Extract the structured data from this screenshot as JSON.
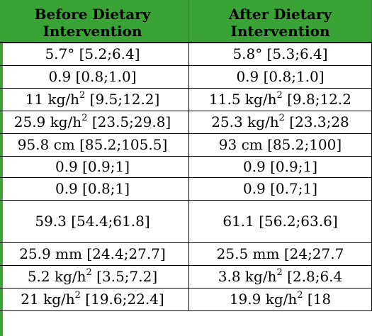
{
  "header": {
    "before": [
      "Before Dietary",
      "Intervention"
    ],
    "after": [
      "After Dietary",
      "Intervention"
    ]
  },
  "rows": [
    {
      "before": "5.7° [5.2;6.4]",
      "after": "5.8° [5.3;6.4]",
      "before_parts": null,
      "after_parts": null
    },
    {
      "before": "0.9 [0.8;1.0]",
      "after": "0.9 [0.8;1.0]",
      "before_parts": null,
      "after_parts": null
    },
    {
      "before": "",
      "after": "",
      "before_parts": {
        "pre": "11 kg/h",
        "sup": "2",
        "post": " [9.5;12.2]"
      },
      "after_parts": {
        "pre": "11.5 kg/h",
        "sup": "2",
        "post": " [9.8;12.2"
      }
    },
    {
      "before": "",
      "after": "",
      "before_parts": {
        "pre": "25.9 kg/h",
        "sup": "2",
        "post": " [23.5;29.8]"
      },
      "after_parts": {
        "pre": "25.3 kg/h",
        "sup": "2",
        "post": " [23.3;28"
      }
    },
    {
      "before": "95.8 cm [85.2;105.5]",
      "after": "93 cm [85.2;100]",
      "before_parts": null,
      "after_parts": null
    },
    {
      "before": "0.9 [0.9;1]",
      "after": "0.9 [0.9;1]",
      "before_parts": null,
      "after_parts": null
    },
    {
      "before": "0.9 [0.8;1]",
      "after": "0.9 [0.7;1]",
      "before_parts": null,
      "after_parts": null
    },
    {
      "before": "59.3 [54.4;61.8]",
      "after": "61.1 [56.2;63.6]",
      "before_parts": null,
      "after_parts": null
    },
    {
      "before": "25.9 mm [24.4;27.7]",
      "after": "25.5 mm [24;27.7",
      "before_parts": null,
      "after_parts": null
    },
    {
      "before": "",
      "after": "",
      "before_parts": {
        "pre": "5.2 kg/h",
        "sup": "2",
        "post": " [3.5;7.2]"
      },
      "after_parts": {
        "pre": "3.8 kg/h",
        "sup": "2",
        "post": " [2.8;6.4"
      }
    },
    {
      "before": "",
      "after": "",
      "before_parts": {
        "pre": "21 kg/h",
        "sup": "2",
        "post": " [19.6;22.4]"
      },
      "after_parts": {
        "pre": "19.9 kg/h",
        "sup": "2",
        "post": " [18"
      }
    }
  ],
  "colors": {
    "header_bg": "#3aa335",
    "accent_stripe": "#3aa335",
    "border": "#000000"
  }
}
